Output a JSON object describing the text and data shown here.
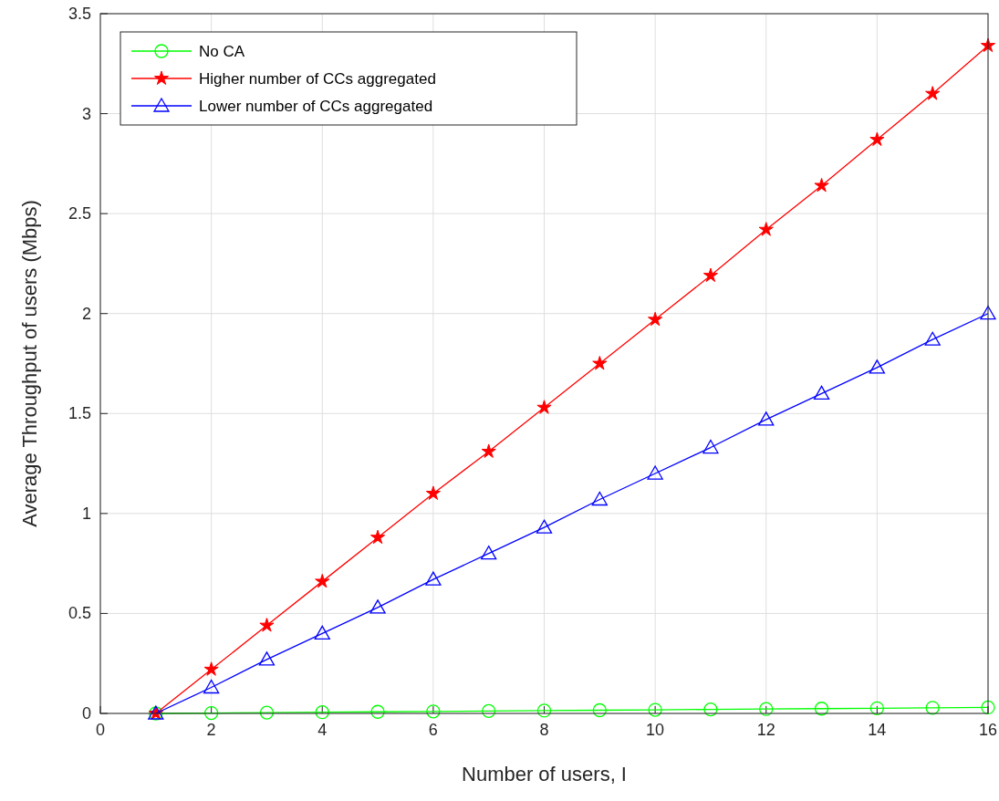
{
  "chart_data": {
    "type": "line",
    "xlabel": "Number of users, I",
    "ylabel": "Average Throughput of users (Mbps)",
    "x": [
      1,
      2,
      3,
      4,
      5,
      6,
      7,
      8,
      9,
      10,
      11,
      12,
      13,
      14,
      15,
      16
    ],
    "series": [
      {
        "name": "No CA",
        "color": "#00ff00",
        "marker": "circle",
        "values": [
          0,
          0.002,
          0.004,
          0.006,
          0.008,
          0.01,
          0.012,
          0.014,
          0.016,
          0.018,
          0.02,
          0.022,
          0.024,
          0.026,
          0.028,
          0.03
        ]
      },
      {
        "name": "Higher number of CCs aggregated",
        "color": "#ff0000",
        "marker": "star",
        "values": [
          0,
          0.22,
          0.44,
          0.66,
          0.88,
          1.1,
          1.31,
          1.53,
          1.75,
          1.97,
          2.19,
          2.42,
          2.64,
          2.87,
          3.1,
          3.34
        ]
      },
      {
        "name": "Lower number of CCs aggregated",
        "color": "#0000ff",
        "marker": "triangle",
        "values": [
          0,
          0.13,
          0.27,
          0.4,
          0.53,
          0.67,
          0.8,
          0.93,
          1.07,
          1.2,
          1.33,
          1.47,
          1.6,
          1.73,
          1.87,
          2.0
        ]
      }
    ],
    "xlim": [
      0,
      16
    ],
    "xticks": [
      0,
      2,
      4,
      6,
      8,
      10,
      12,
      14,
      16
    ],
    "ylim": [
      0,
      3.5
    ],
    "yticks": [
      0,
      0.5,
      1,
      1.5,
      2,
      2.5,
      3,
      3.5
    ],
    "grid": true,
    "legend": "top left",
    "line_style": "solid"
  }
}
